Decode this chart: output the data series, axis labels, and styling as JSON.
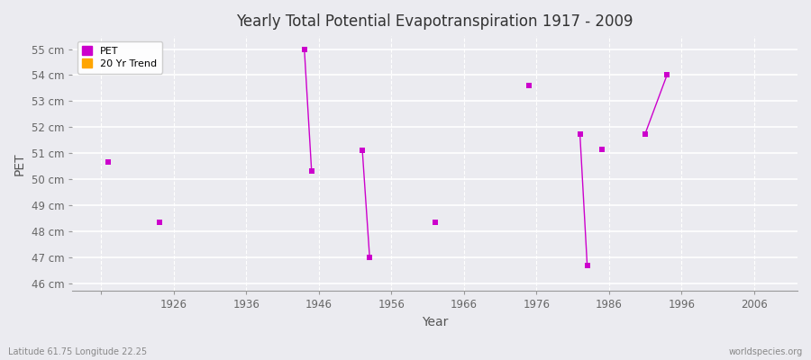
{
  "title": "Yearly Total Potential Evapotranspiration 1917 - 2009",
  "xlabel": "Year",
  "ylabel": "PET",
  "xlim": [
    1912,
    2012
  ],
  "ylim": [
    45.7,
    55.5
  ],
  "yticks": [
    46,
    47,
    48,
    49,
    50,
    51,
    52,
    53,
    54,
    55
  ],
  "ytick_labels": [
    "46 cm",
    "47 cm",
    "48 cm",
    "49 cm",
    "50 cm",
    "51 cm",
    "52 cm",
    "53 cm",
    "54 cm",
    "55 cm"
  ],
  "xticks": [
    1916,
    1926,
    1936,
    1946,
    1956,
    1966,
    1976,
    1986,
    1996,
    2006
  ],
  "xtick_labels": [
    "",
    "1926",
    "1936",
    "1946",
    "1956",
    "1966",
    "1976",
    "1986",
    "1996",
    "2006"
  ],
  "pet_color": "#CC00CC",
  "trend_color": "#FFA500",
  "bg_color": "#EBEBF0",
  "plot_bg_color": "#EBEBF0",
  "grid_color": "#FFFFFF",
  "footer_left": "Latitude 61.75 Longitude 22.25",
  "footer_right": "worldspecies.org",
  "scatter_data": [
    {
      "year": 1917,
      "value": 50.65
    },
    {
      "year": 1924,
      "value": 48.35
    },
    {
      "year": 1944,
      "value": 55.0
    },
    {
      "year": 1945,
      "value": 50.3
    },
    {
      "year": 1952,
      "value": 51.1
    },
    {
      "year": 1953,
      "value": 47.0
    },
    {
      "year": 1962,
      "value": 48.35
    },
    {
      "year": 1975,
      "value": 53.6
    },
    {
      "year": 1982,
      "value": 51.75
    },
    {
      "year": 1983,
      "value": 46.7
    },
    {
      "year": 1985,
      "value": 51.15
    },
    {
      "year": 1991,
      "value": 51.75
    },
    {
      "year": 1994,
      "value": 54.0
    }
  ],
  "line_segments": [
    {
      "x": [
        1944,
        1945
      ],
      "y": [
        55.0,
        50.3
      ]
    },
    {
      "x": [
        1952,
        1953
      ],
      "y": [
        51.1,
        47.0
      ]
    },
    {
      "x": [
        1982,
        1983
      ],
      "y": [
        51.75,
        46.7
      ]
    },
    {
      "x": [
        1991,
        1994
      ],
      "y": [
        51.75,
        54.0
      ]
    }
  ]
}
